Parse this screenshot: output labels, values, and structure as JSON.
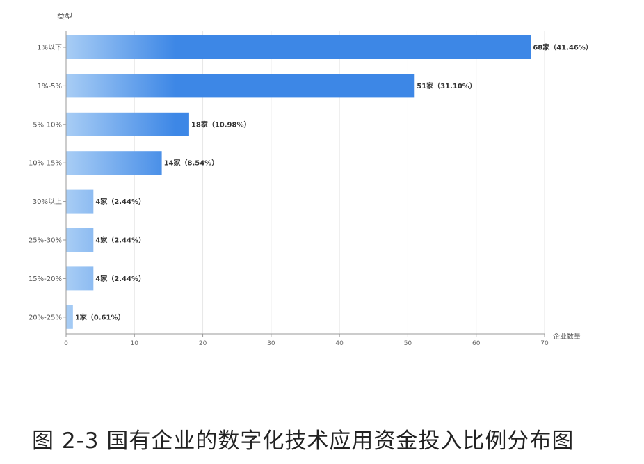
{
  "caption": "图 2-3 国有企业的数字化技术应用资金投入比例分布图",
  "chart_data": {
    "type": "bar",
    "orientation": "horizontal",
    "ylabel": "类型",
    "xlabel": "企业数量",
    "xlim": [
      0,
      70
    ],
    "xticks": [
      0,
      10,
      20,
      30,
      40,
      50,
      60,
      70
    ],
    "grid": true,
    "categories": [
      "1%以下",
      "1%-5%",
      "5%-10%",
      "10%-15%",
      "30%以上",
      "25%-30%",
      "15%-20%",
      "20%-25%"
    ],
    "values": [
      68,
      51,
      18,
      14,
      4,
      4,
      4,
      1
    ],
    "data_labels": [
      "68家（41.46%）",
      "51家（31.10%）",
      "18家（10.98%）",
      "14家（8.54%）",
      "4家（2.44%）",
      "4家（2.44%）",
      "4家（2.44%）",
      "1家（0.61%）"
    ],
    "colors": {
      "bar_start": "#a8cdf5",
      "bar_end": "#3d87e6"
    }
  }
}
